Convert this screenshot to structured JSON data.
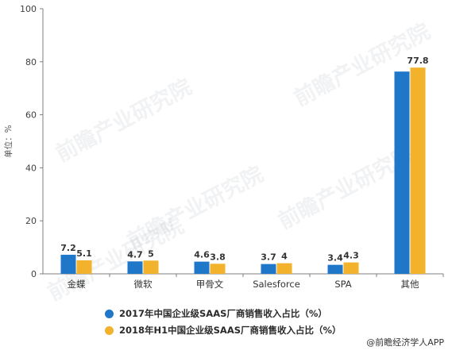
{
  "chart_data": {
    "type": "bar",
    "categories": [
      "金蝶",
      "微软",
      "甲骨文",
      "Salesforce",
      "SPA",
      "其他"
    ],
    "series": [
      {
        "name": "2017年中国企业级SAAS厂商销售收入占比（%）",
        "values": [
          7.2,
          4.7,
          4.6,
          3.7,
          3.4,
          76.3
        ],
        "labels": [
          "7.2",
          "4.7",
          "4.6",
          "3.7",
          "3.4",
          ""
        ],
        "color": "#1f77c9"
      },
      {
        "name": "2018年H1中国企业级SAAS厂商销售收入占比（%）",
        "values": [
          5.1,
          5,
          3.8,
          4,
          4.3,
          77.8
        ],
        "labels": [
          "5.1",
          "5",
          "3.8",
          "4",
          "4.3",
          "77.8"
        ],
        "color": "#f2b22c"
      }
    ],
    "ylabel": "单位：%",
    "ylim": [
      0,
      100
    ],
    "yticks": [
      "0",
      "20",
      "40",
      "60",
      "80",
      "100"
    ],
    "grid": false,
    "legend_position": "bottom"
  },
  "watermark": "前瞻产业研究院",
  "source": "@前瞻经济学人APP"
}
